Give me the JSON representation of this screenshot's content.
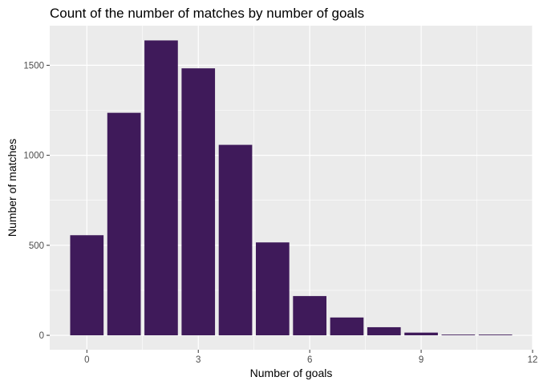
{
  "chart_data": {
    "type": "bar",
    "title": "Count of the number of matches by number of goals",
    "xlabel": "Number of goals",
    "ylabel": "Number of matches",
    "x": [
      0,
      1,
      2,
      3,
      4,
      5,
      6,
      7,
      8,
      9,
      10,
      11
    ],
    "values": [
      556,
      1236,
      1638,
      1483,
      1058,
      516,
      218,
      99,
      45,
      15,
      4,
      4
    ],
    "xlim": [
      -1,
      12
    ],
    "ylim": [
      -80,
      1720
    ],
    "x_ticks": [
      0,
      3,
      6,
      9,
      12
    ],
    "y_ticks": [
      0,
      500,
      1000,
      1500
    ],
    "grid": true,
    "legend": "none",
    "bar_color": "#3f1a5a",
    "panel_background": "#ebebeb",
    "grid_color": "#ffffff"
  }
}
